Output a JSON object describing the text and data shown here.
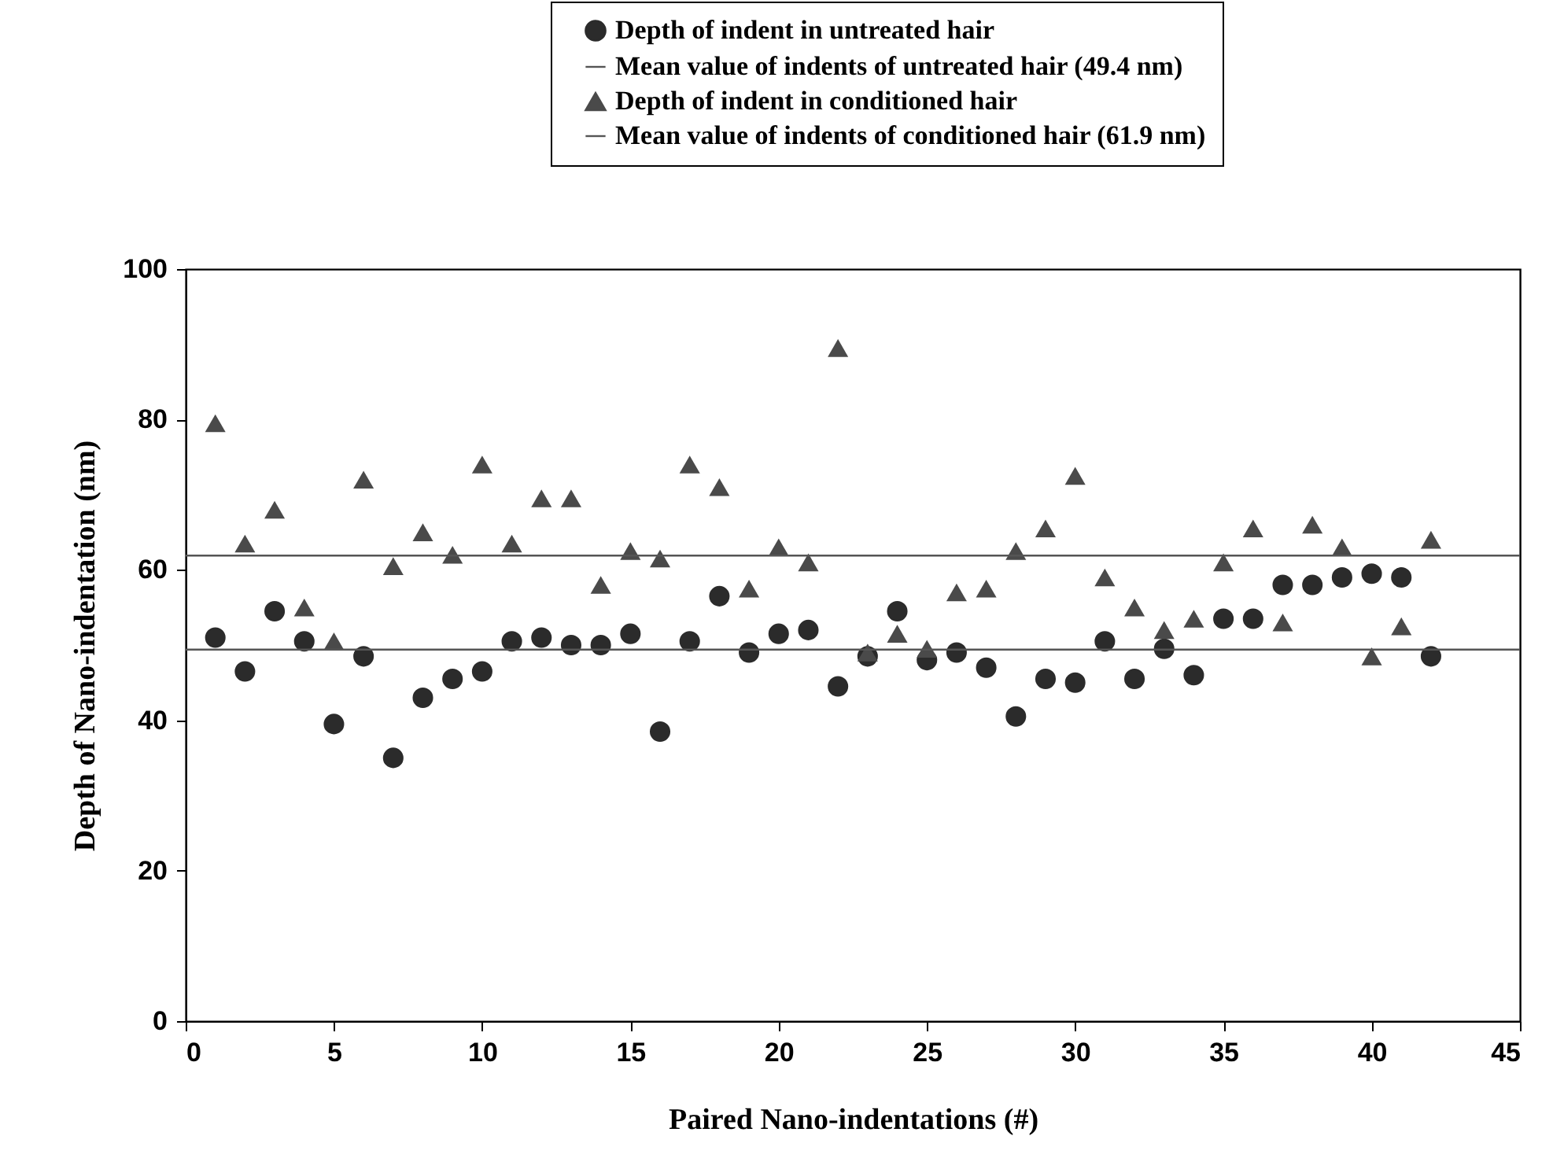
{
  "chart_data": {
    "type": "scatter",
    "xlabel": "Paired Nano-indentations (#)",
    "ylabel": "Depth of Nano-indentation (nm)",
    "x": [
      1,
      2,
      3,
      4,
      5,
      6,
      7,
      8,
      9,
      10,
      11,
      12,
      13,
      14,
      15,
      16,
      17,
      18,
      19,
      20,
      21,
      22,
      23,
      24,
      25,
      26,
      27,
      28,
      29,
      30,
      31,
      32,
      33,
      34,
      35,
      36,
      37,
      38,
      39,
      40,
      41,
      42
    ],
    "xlim": [
      0,
      45
    ],
    "xticks": [
      0,
      5,
      10,
      15,
      20,
      25,
      30,
      35,
      40,
      45
    ],
    "ylim": [
      0,
      100
    ],
    "yticks": [
      0,
      20,
      40,
      60,
      80,
      100
    ],
    "grid": false,
    "legend": "top right",
    "series": [
      {
        "name": "Depth of indent in untreated hair",
        "marker": "circle",
        "color": "#2b2b2b",
        "values": [
          51,
          46.5,
          54.5,
          50.5,
          39.5,
          48.5,
          35,
          43,
          45.5,
          46.5,
          50.5,
          51,
          50,
          50,
          51.5,
          38.5,
          50.5,
          56.5,
          49,
          51.5,
          52,
          44.5,
          48.5,
          54.5,
          48,
          49,
          47,
          40.5,
          45.5,
          45,
          50.5,
          45.5,
          49.5,
          46,
          53.5,
          53.5,
          58,
          58,
          59,
          59.5,
          59,
          48.5
        ]
      },
      {
        "name": "Depth of indent in conditioned hair",
        "marker": "triangle",
        "color": "#4a4a4a",
        "values": [
          79.5,
          63.5,
          68,
          55,
          50.5,
          72,
          60.5,
          65,
          62,
          74,
          63.5,
          69.5,
          69.5,
          58,
          62.5,
          61.5,
          74,
          71,
          57.5,
          63,
          61,
          89.5,
          49,
          51.5,
          49.5,
          57,
          57.5,
          62.5,
          65.5,
          72.5,
          59,
          55,
          52,
          53.5,
          61,
          65.5,
          53,
          66,
          63,
          48.5,
          52.5,
          64
        ]
      }
    ],
    "ref_lines": [
      {
        "axis": "y",
        "value": 49.4,
        "label": "Mean value of indents of untreated hair (49.4 nm)",
        "color": "#555555",
        "line_style": "solid"
      },
      {
        "axis": "y",
        "value": 61.9,
        "label": "Mean value of indents of conditioned hair (61.9 nm)",
        "color": "#555555",
        "line_style": "solid"
      }
    ]
  }
}
